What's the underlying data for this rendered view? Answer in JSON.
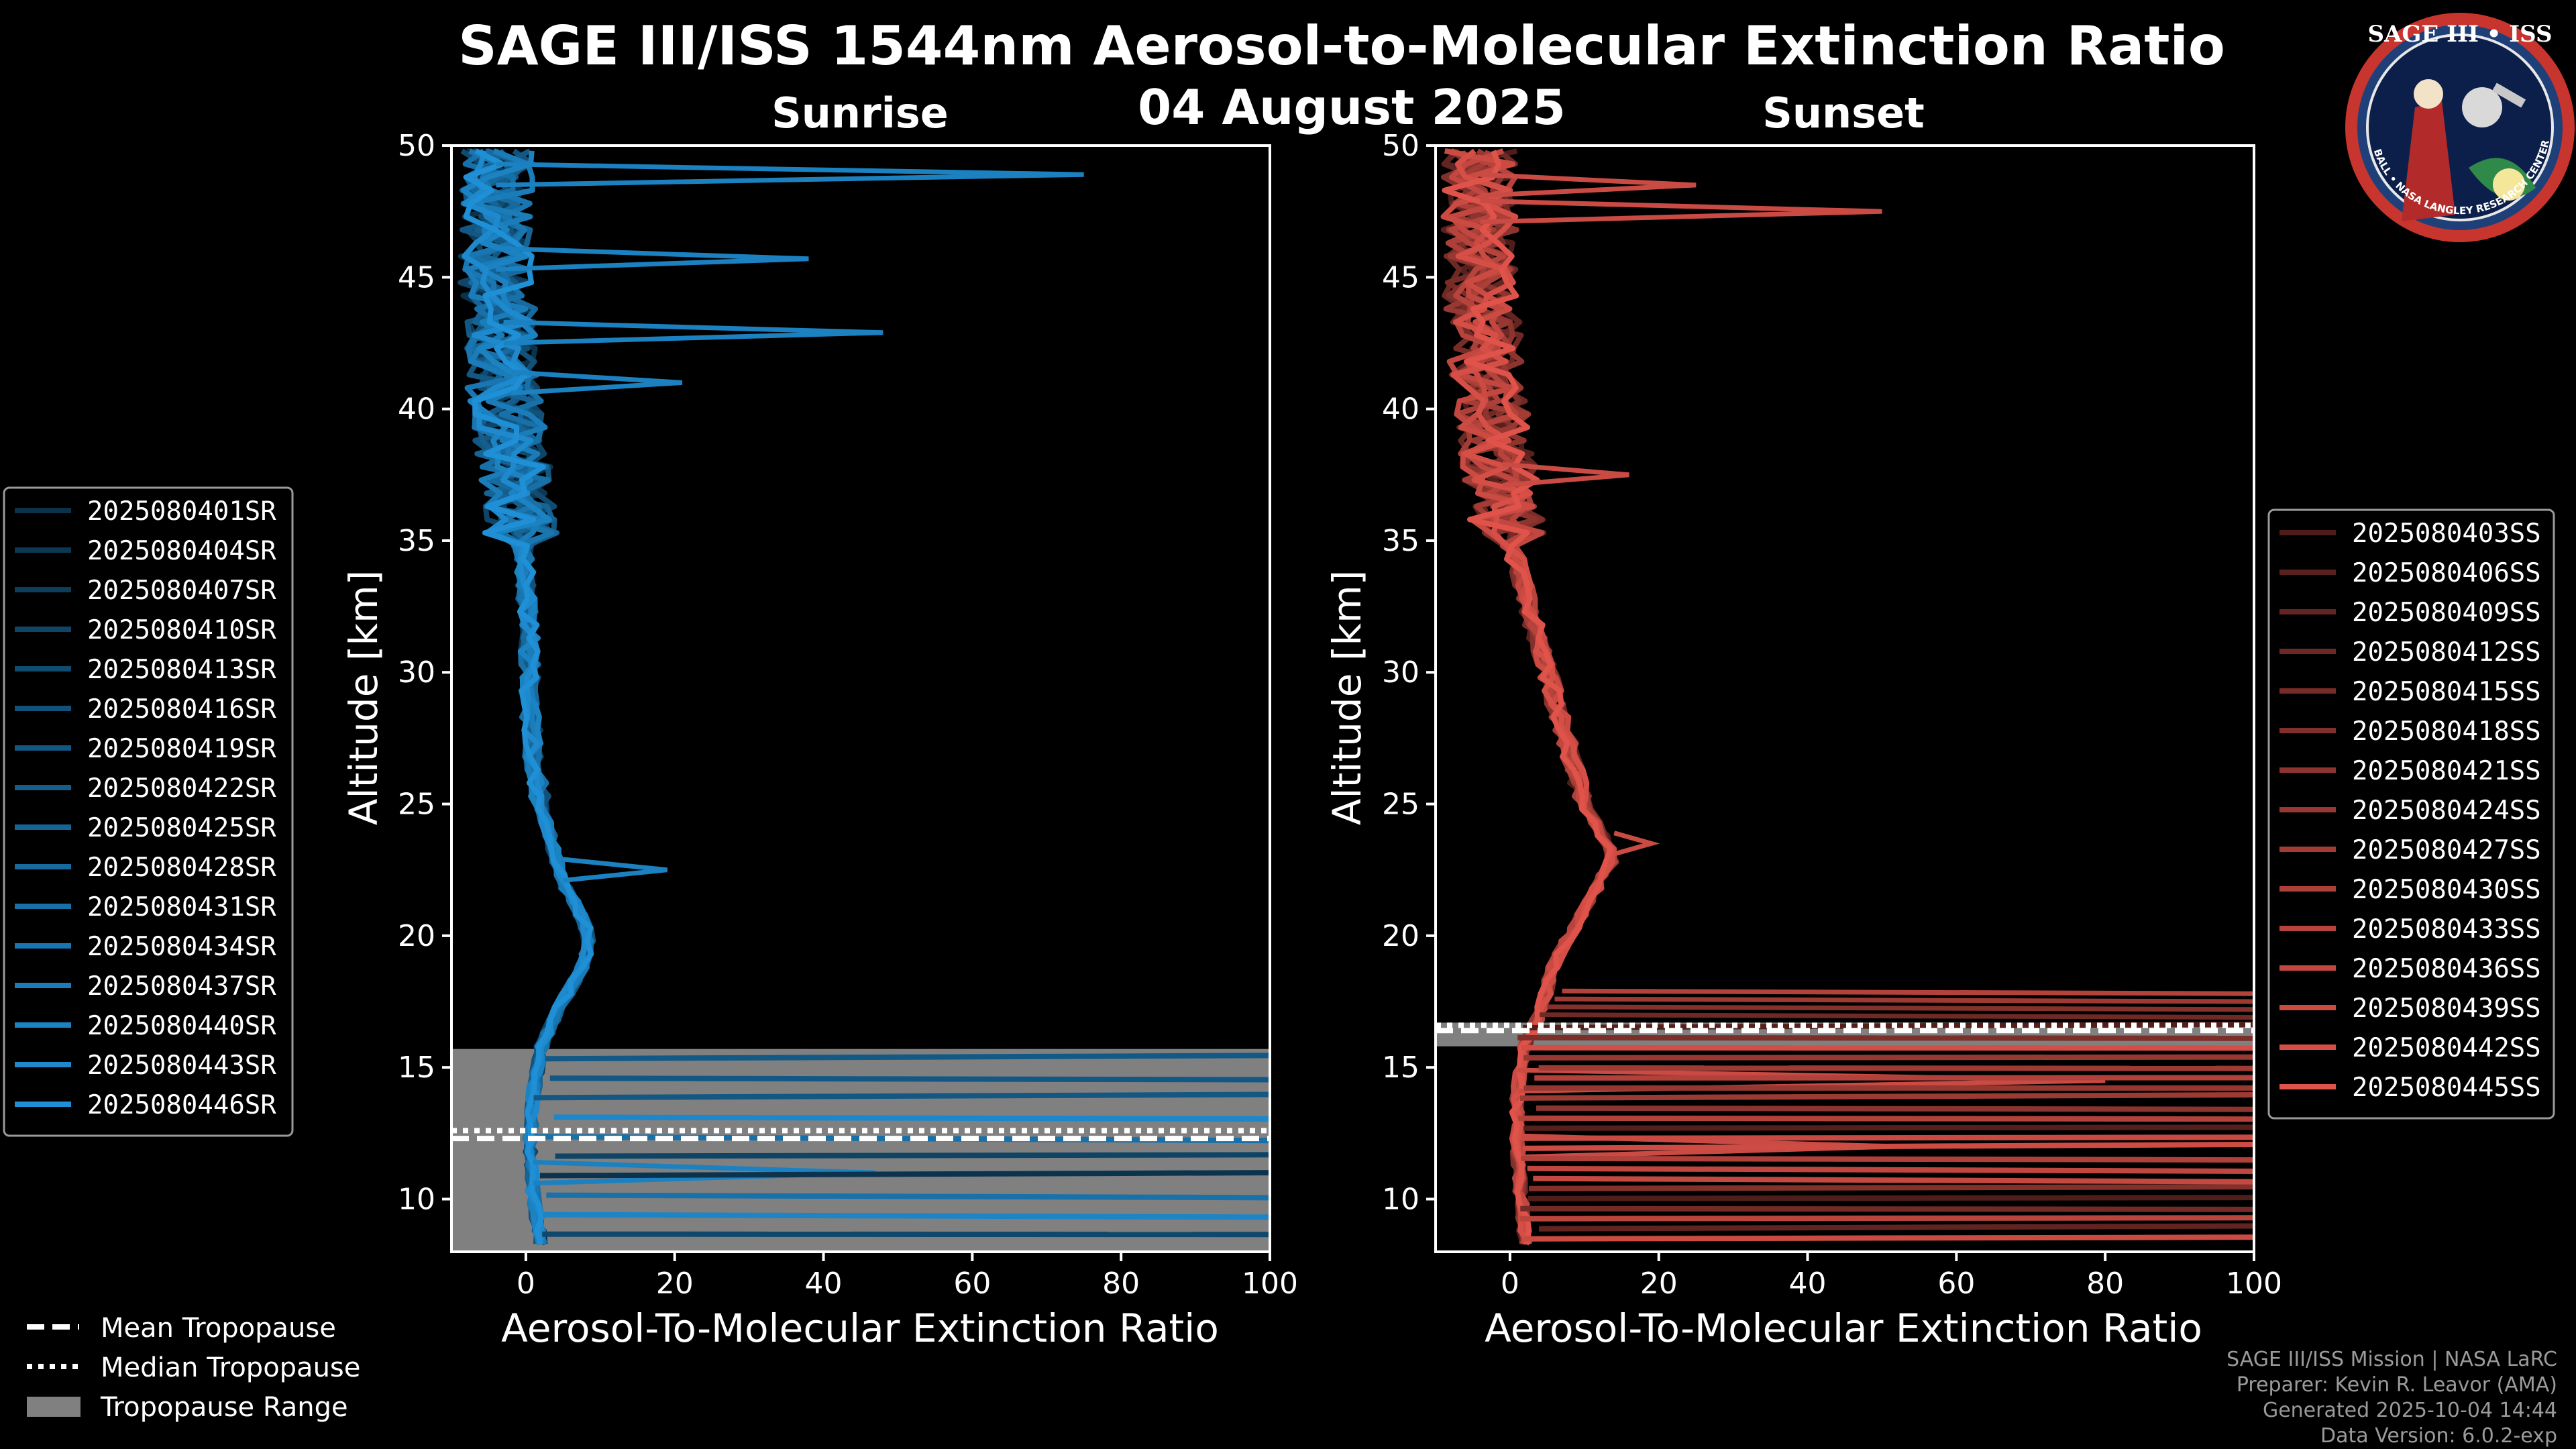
{
  "title": {
    "main": "SAGE III/ISS 1544nm Aerosol-to-Molecular Extinction Ratio",
    "date": "04 August 2025"
  },
  "logo": {
    "text": "SAGE III • ISS",
    "ring_text": "BALL • NASA LANGLEY RESEARCH CENTER • TAS-I • ESA"
  },
  "colors": {
    "sunrise": "#1f8fd6",
    "sunset": "#e0534a",
    "tropopause_range": "#808080"
  },
  "chart_data": [
    {
      "type": "line",
      "panel": "Sunrise",
      "title": "Sunrise",
      "xlabel": "Aerosol-To-Molecular Extinction Ratio",
      "ylabel": "Altitude [km]",
      "xlim": [
        -10,
        100
      ],
      "ylim": [
        8,
        50
      ],
      "xticks": [
        "0",
        "20",
        "40",
        "60",
        "80",
        "100"
      ],
      "yticks": [
        "10",
        "15",
        "20",
        "25",
        "30",
        "35",
        "40",
        "45",
        "50"
      ],
      "tropopause": {
        "mean_km": 12.3,
        "median_km": 12.6,
        "range_km": [
          8,
          15.7
        ]
      },
      "legend_position": "left",
      "series_names": [
        "2025080401SR",
        "2025080404SR",
        "2025080407SR",
        "2025080410SR",
        "2025080413SR",
        "2025080416SR",
        "2025080419SR",
        "2025080422SR",
        "2025080425SR",
        "2025080428SR",
        "2025080431SR",
        "2025080434SR",
        "2025080437SR",
        "2025080440SR",
        "2025080443SR",
        "2025080446SR"
      ],
      "representative_profile": {
        "altitude_km": [
          8.5,
          10,
          12,
          14,
          15.7,
          17,
          18,
          19,
          20,
          21,
          22,
          23,
          24,
          25,
          27,
          29,
          31,
          33,
          35,
          37,
          39,
          41,
          43,
          45,
          47,
          49.5
        ],
        "ratio": [
          2,
          1,
          0.5,
          1,
          2,
          4,
          6,
          8,
          8.5,
          7,
          5,
          4,
          3,
          2,
          1,
          0.5,
          0.5,
          0,
          -0.5,
          -1,
          -2,
          -3,
          -3.5,
          -4,
          -4,
          -4
        ]
      },
      "spikes": [
        {
          "altitude_km": 48.9,
          "ratio": 75
        },
        {
          "altitude_km": 45.7,
          "ratio": 38
        },
        {
          "altitude_km": 42.9,
          "ratio": 48
        },
        {
          "altitude_km": 41.0,
          "ratio": 21
        },
        {
          "altitude_km": 22.5,
          "ratio": 19
        },
        {
          "altitude_km": 11.0,
          "ratio": 47
        }
      ]
    },
    {
      "type": "line",
      "panel": "Sunset",
      "title": "Sunset",
      "xlabel": "Aerosol-To-Molecular Extinction Ratio",
      "ylabel": "Altitude [km]",
      "xlim": [
        -10,
        100
      ],
      "ylim": [
        8,
        50
      ],
      "xticks": [
        "0",
        "20",
        "40",
        "60",
        "80",
        "100"
      ],
      "yticks": [
        "10",
        "15",
        "20",
        "25",
        "30",
        "35",
        "40",
        "45",
        "50"
      ],
      "tropopause": {
        "mean_km": 16.4,
        "median_km": 16.6,
        "range_km": [
          15.8,
          16.7
        ]
      },
      "legend_position": "right",
      "series_names": [
        "2025080403SS",
        "2025080406SS",
        "2025080409SS",
        "2025080412SS",
        "2025080415SS",
        "2025080418SS",
        "2025080421SS",
        "2025080424SS",
        "2025080427SS",
        "2025080430SS",
        "2025080433SS",
        "2025080436SS",
        "2025080439SS",
        "2025080442SS",
        "2025080445SS"
      ],
      "representative_profile": {
        "altitude_km": [
          8.5,
          10,
          12,
          14,
          15.8,
          17,
          18,
          19,
          20,
          21,
          22,
          23,
          24,
          25,
          27,
          29,
          31,
          33,
          35,
          37,
          39,
          41,
          43,
          45,
          47,
          49.5
        ],
        "ratio": [
          2,
          1.5,
          1,
          1,
          2,
          4,
          5,
          6,
          8,
          10,
          12,
          14,
          12,
          10,
          8,
          6,
          4,
          2,
          0,
          -1,
          -2,
          -3,
          -3.5,
          -4,
          -4,
          -4
        ]
      },
      "spikes": [
        {
          "altitude_km": 47.5,
          "ratio": 50
        },
        {
          "altitude_km": 48.5,
          "ratio": 25
        },
        {
          "altitude_km": 37.5,
          "ratio": 16
        },
        {
          "altitude_km": 23.5,
          "ratio": 19
        },
        {
          "altitude_km": 14.5,
          "ratio": 80
        },
        {
          "altitude_km": 12.0,
          "ratio": 52
        }
      ]
    }
  ],
  "tropopause_legend": {
    "mean": "Mean Tropopause",
    "median": "Median Tropopause",
    "range": "Tropopause Range"
  },
  "footer": {
    "line1": "SAGE III/ISS Mission | NASA LaRC",
    "line2": "Preparer: Kevin R. Leavor (AMA)",
    "line3": "Generated 2025-10-04 14:44",
    "line4": "Data Version: 6.0.2-exp"
  }
}
